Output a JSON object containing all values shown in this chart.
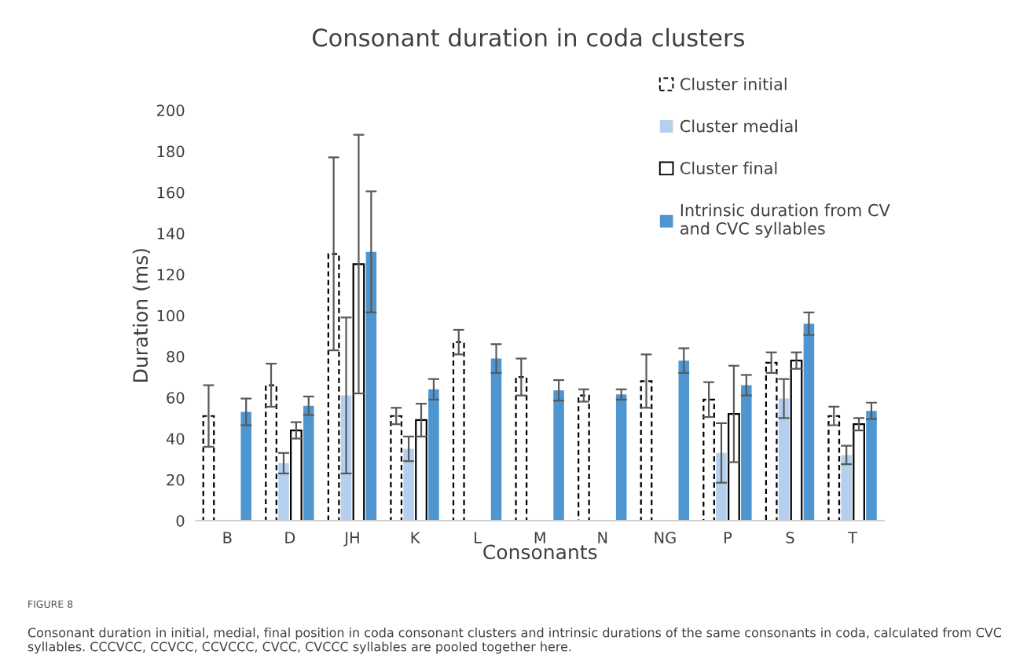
{
  "chart_data": {
    "type": "bar",
    "title": "Consonant duration in coda clusters",
    "xlabel": "Consonants",
    "ylabel": "Duration (ms)",
    "categories": [
      "B",
      "D",
      "JH",
      "K",
      "L",
      "M",
      "N",
      "NG",
      "P",
      "S",
      "T"
    ],
    "series": [
      {
        "name": "Cluster initial",
        "color": "#ffffff",
        "line_style": "dashed",
        "values": [
          51,
          66,
          130,
          51,
          87,
          70,
          61,
          68,
          59,
          77,
          51
        ],
        "errors": [
          15,
          10.5,
          47,
          4,
          6,
          9,
          3,
          13,
          8.5,
          5,
          4.5
        ]
      },
      {
        "name": "Cluster medial",
        "color": "#b4d0ee",
        "values": [
          null,
          28,
          61,
          35,
          null,
          null,
          null,
          null,
          33,
          59.5,
          32
        ],
        "errors": [
          null,
          5,
          38,
          6,
          null,
          null,
          null,
          null,
          14.5,
          9.5,
          4.5
        ]
      },
      {
        "name": "Cluster final",
        "color": "#ffffff",
        "line_style": "solid",
        "values": [
          null,
          44,
          125,
          49,
          null,
          null,
          null,
          null,
          52,
          78,
          47
        ],
        "errors": [
          null,
          4,
          63,
          8,
          null,
          null,
          null,
          null,
          23.5,
          4,
          3
        ]
      },
      {
        "name": "Intrinsic duration from CV and CVC syllables",
        "color": "#4f96d1",
        "values": [
          53,
          56,
          131,
          64,
          79,
          63.5,
          61.5,
          78,
          66,
          96,
          53.5
        ],
        "errors": [
          6.5,
          4.5,
          29.5,
          5,
          7,
          5,
          2.5,
          6,
          5,
          5.5,
          4
        ]
      }
    ],
    "ylim": [
      0,
      200
    ],
    "yticks": [
      0,
      20,
      40,
      60,
      80,
      100,
      120,
      140,
      160,
      180,
      200
    ],
    "grid": false,
    "legend": "top right",
    "annotations": [
      "FIGURE 8",
      "Consonant duration in initial, medial, final position in coda consonant clusters and intrinsic durations of the same consonants in coda, calculated from CVC syllables. CCCVCC, CCVCC, CCVCCC, CVCC, CVCCC syllables are pooled together here."
    ]
  }
}
